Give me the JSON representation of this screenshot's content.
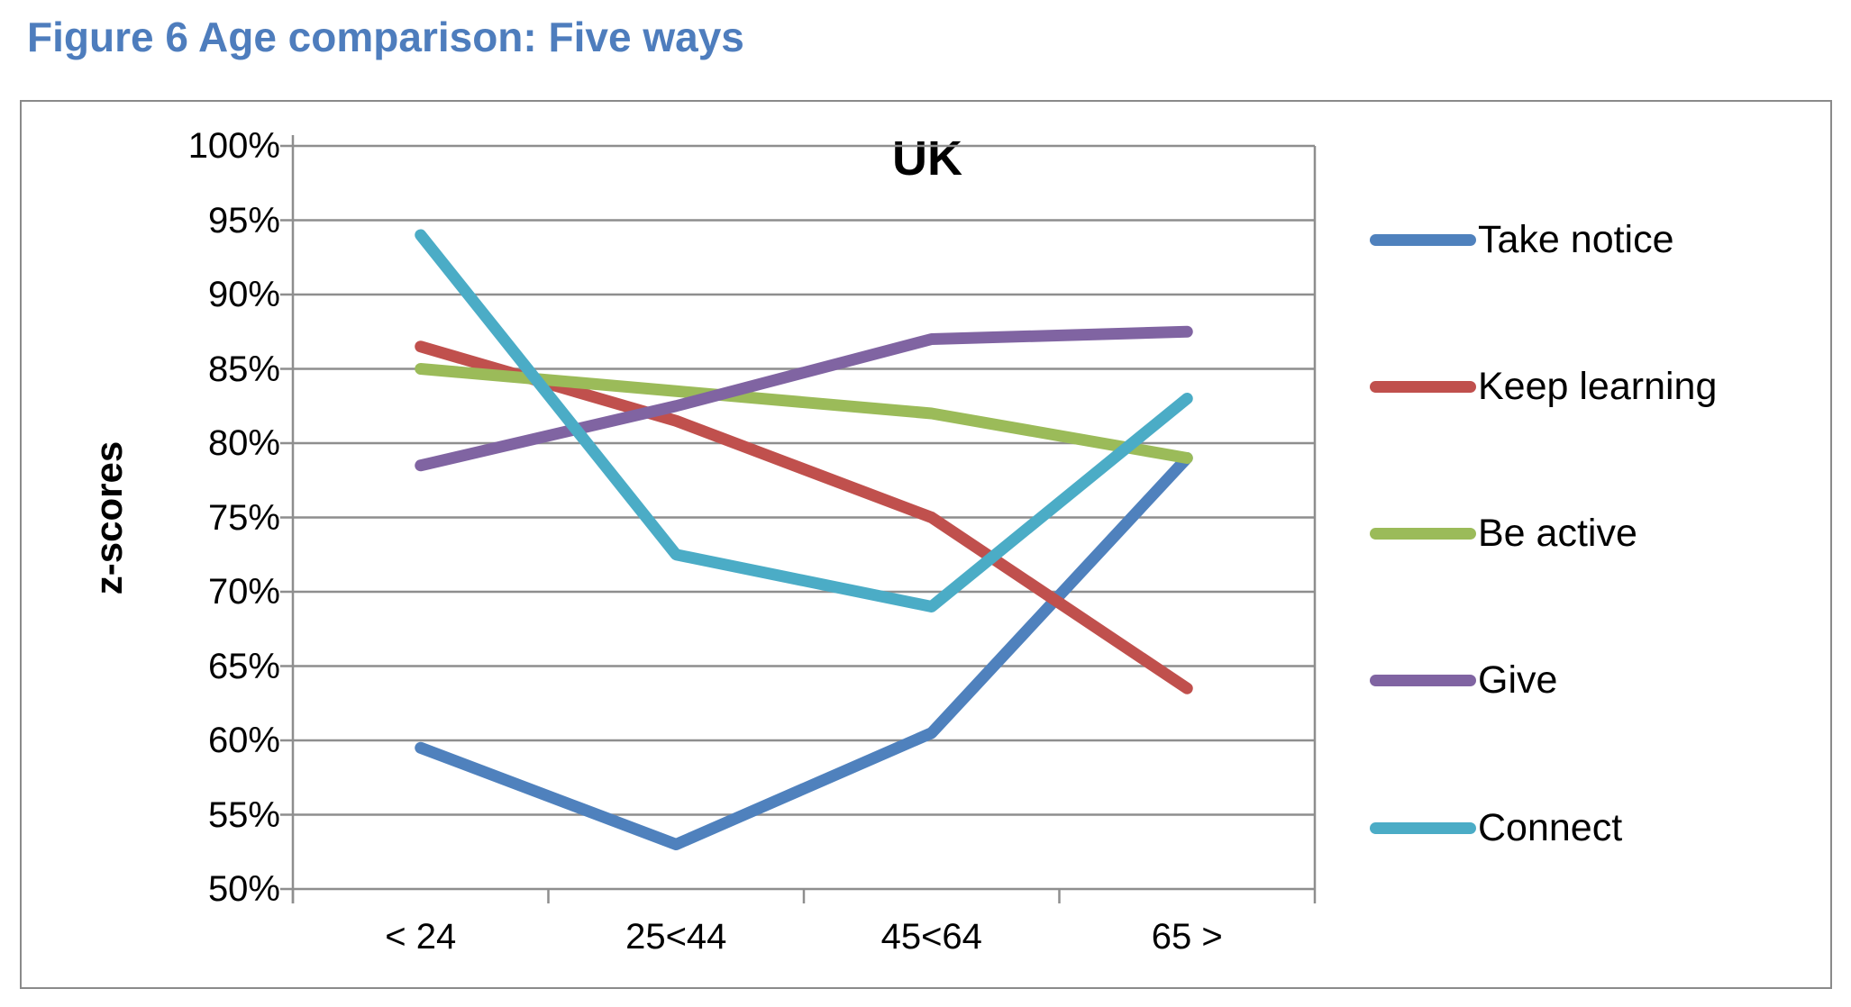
{
  "page": {
    "title": "Figure 6 Age comparison: Five ways",
    "title_color": "#4e7dbd"
  },
  "chart_data": {
    "type": "line",
    "title": "UK",
    "xlabel": "",
    "ylabel": "z-scores",
    "categories": [
      "< 24",
      "25<44",
      "45<64",
      "65 >"
    ],
    "series": [
      {
        "name": "Take notice",
        "color": "#4f81bd",
        "values": [
          59.5,
          53.0,
          60.5,
          79.0
        ]
      },
      {
        "name": "Keep learning",
        "color": "#c0504d",
        "values": [
          86.5,
          81.5,
          75.0,
          63.5
        ]
      },
      {
        "name": "Be active",
        "color": "#9bbb59",
        "values": [
          85.0,
          83.5,
          82.0,
          79.0
        ]
      },
      {
        "name": "Give",
        "color": "#8064a2",
        "values": [
          78.5,
          82.5,
          87.0,
          87.5
        ]
      },
      {
        "name": "Connect",
        "color": "#4bacc6",
        "values": [
          94.0,
          72.5,
          69.0,
          83.0
        ]
      }
    ],
    "y_axis": {
      "min": 50,
      "max": 100,
      "step": 5,
      "tick_labels": [
        "100%",
        "95%",
        "90%",
        "85%",
        "80%",
        "75%",
        "70%",
        "65%",
        "60%",
        "55%",
        "50%"
      ]
    },
    "grid": true,
    "legend_position": "right",
    "line_width": 13
  },
  "colors": {
    "gridline": "#8e8e8e",
    "frame_border": "#8a8a8a",
    "text": "#000000"
  }
}
